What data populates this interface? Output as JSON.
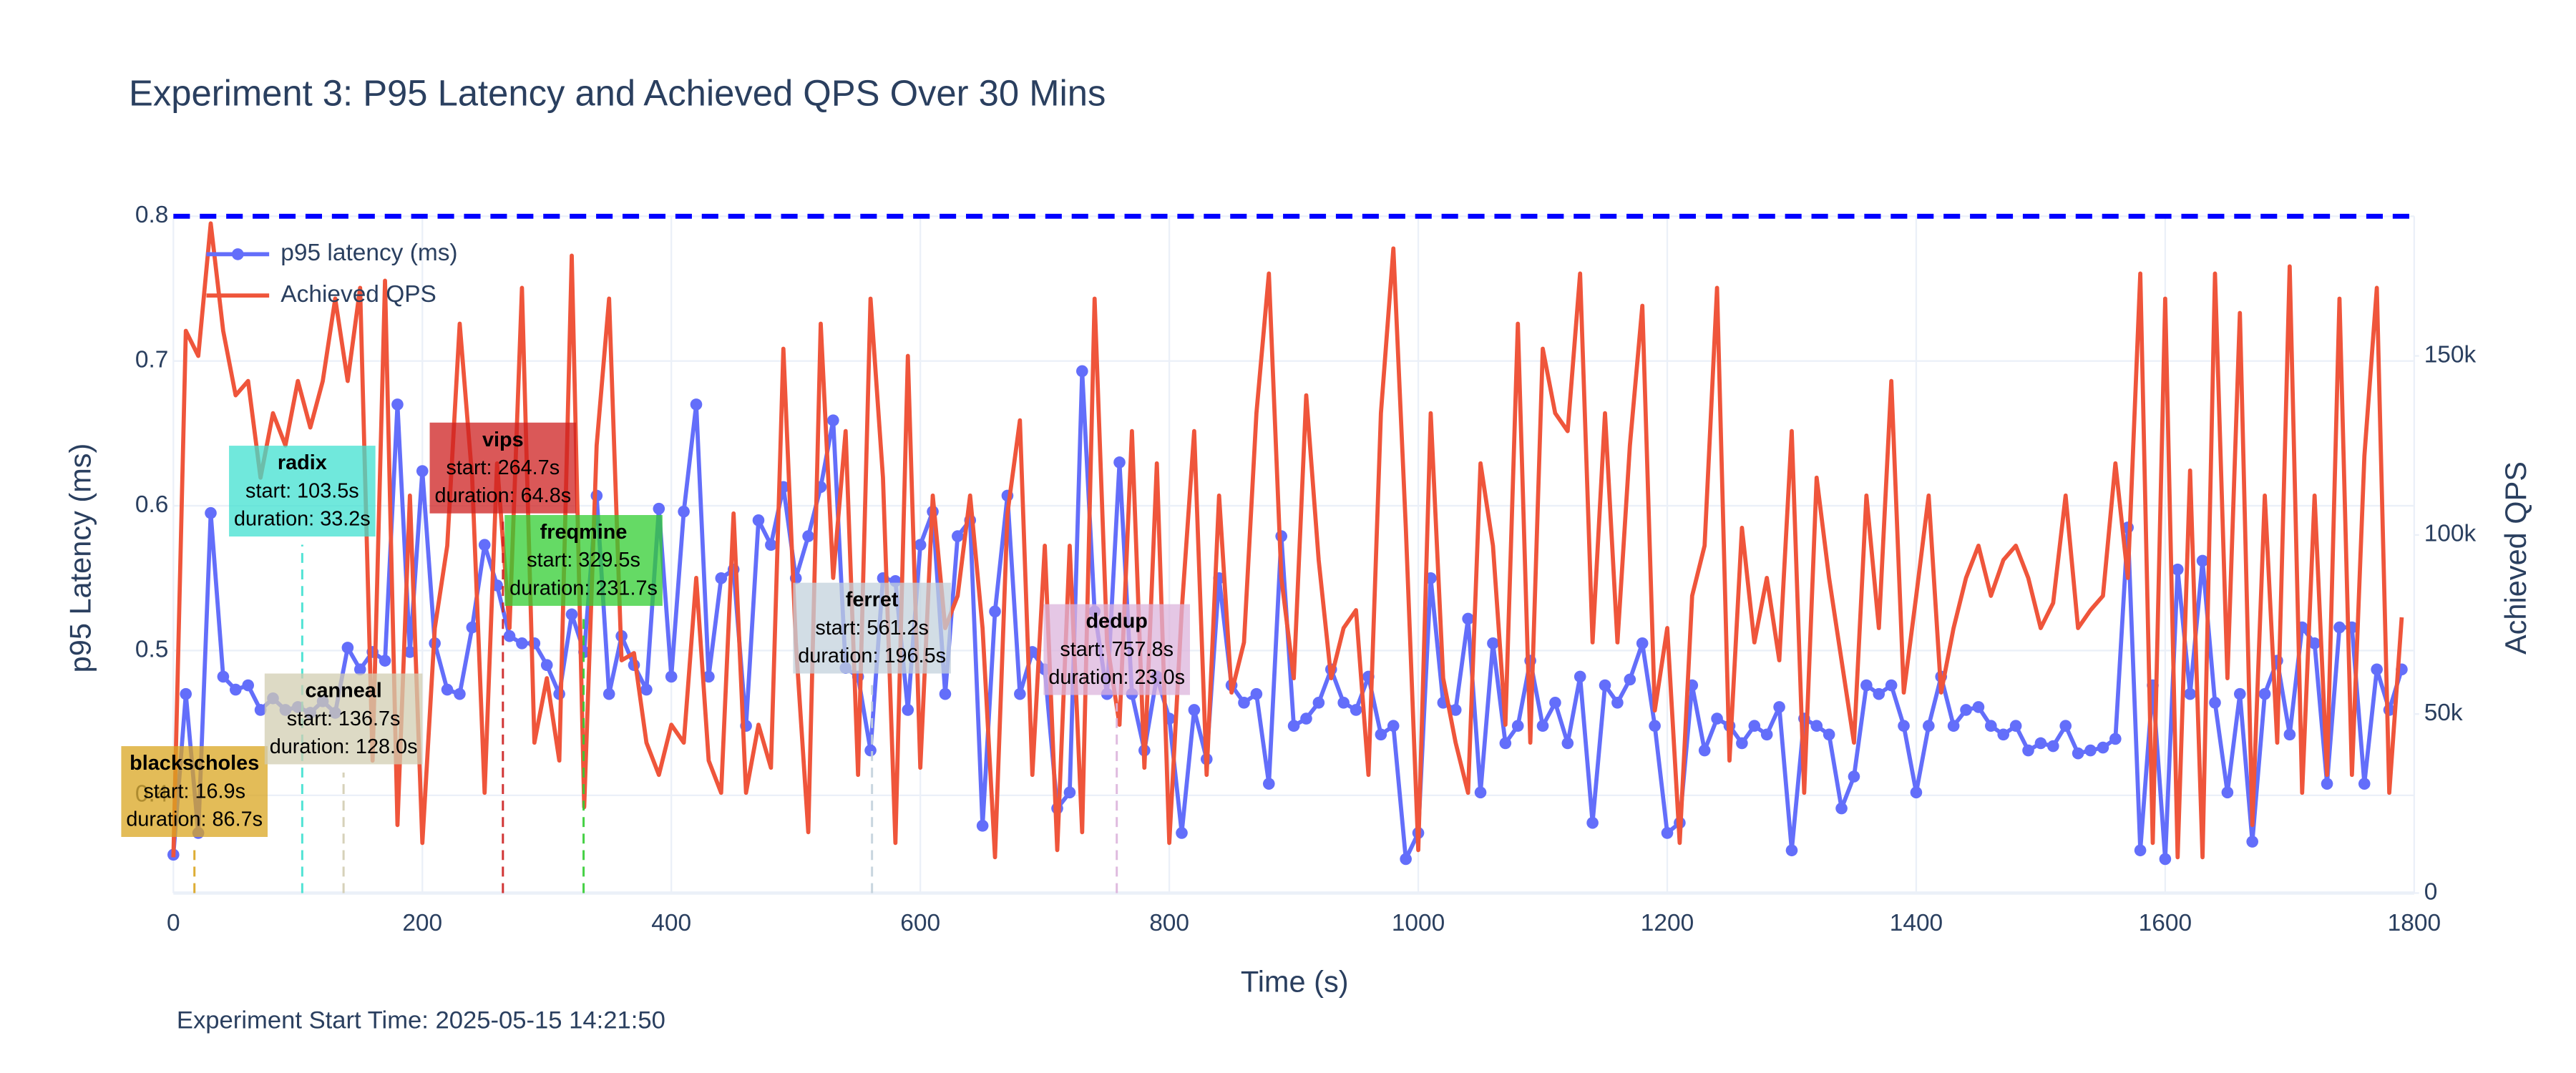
{
  "chart_data": {
    "type": "line",
    "title": "Experiment 3: P95 Latency and Achieved QPS Over 30 Mins",
    "footnote": "Experiment Start Time: 2025-05-15 14:21:50",
    "x_label": "Time (s)",
    "y_label": "p95 Latency (ms)",
    "y2_label": "Achieved QPS",
    "xlim": [
      0,
      1800
    ],
    "xticks": [
      0,
      200,
      400,
      600,
      800,
      1000,
      1200,
      1400,
      1600,
      1800
    ],
    "ylim": [
      0.3325,
      0.8
    ],
    "yticks": [
      0.4,
      0.5,
      0.6,
      0.7,
      0.8
    ],
    "y2lim": [
      0,
      189000
    ],
    "y2ticks": [
      0,
      {
        "value": 50000,
        "label": "50k"
      },
      {
        "value": 100000,
        "label": "100k"
      },
      {
        "value": 150000,
        "label": "150k"
      }
    ],
    "grid": true,
    "legend": "top-left",
    "threshold": 0.8,
    "threshold_color": "#0000ff",
    "x": [
      0,
      10,
      20,
      30,
      40,
      50,
      60,
      70,
      80,
      90,
      100,
      110,
      120,
      130,
      140,
      150,
      160,
      170,
      180,
      190,
      200,
      210,
      220,
      230,
      240,
      250,
      260,
      270,
      280,
      290,
      300,
      310,
      320,
      330,
      340,
      350,
      360,
      370,
      380,
      390,
      400,
      410,
      420,
      430,
      440,
      450,
      460,
      470,
      480,
      490,
      500,
      510,
      520,
      530,
      540,
      550,
      560,
      570,
      580,
      590,
      600,
      610,
      620,
      630,
      640,
      650,
      660,
      670,
      680,
      690,
      700,
      710,
      720,
      730,
      740,
      750,
      760,
      770,
      780,
      790,
      800,
      810,
      820,
      830,
      840,
      850,
      860,
      870,
      880,
      890,
      900,
      910,
      920,
      930,
      940,
      950,
      960,
      970,
      980,
      990,
      1000,
      1010,
      1020,
      1030,
      1040,
      1050,
      1060,
      1070,
      1080,
      1090,
      1100,
      1110,
      1120,
      1130,
      1140,
      1150,
      1160,
      1170,
      1180,
      1190,
      1200,
      1210,
      1220,
      1230,
      1240,
      1250,
      1260,
      1270,
      1280,
      1290,
      1300,
      1310,
      1320,
      1330,
      1340,
      1350,
      1360,
      1370,
      1380,
      1390,
      1400,
      1410,
      1420,
      1430,
      1440,
      1450,
      1460,
      1470,
      1480,
      1490,
      1500,
      1510,
      1520,
      1530,
      1540,
      1550,
      1560,
      1570,
      1580,
      1590,
      1600,
      1610,
      1620,
      1630,
      1640,
      1650,
      1660,
      1670,
      1680,
      1690,
      1700,
      1710,
      1720,
      1730,
      1740,
      1750,
      1760,
      1770,
      1780,
      1790
    ],
    "series": [
      {
        "name": "p95 latency (ms)",
        "color": "#636efa",
        "markers": true,
        "values": [
          0.359,
          0.47,
          0.374,
          0.595,
          0.482,
          0.473,
          0.476,
          0.459,
          0.467,
          0.459,
          0.461,
          0.457,
          0.465,
          0.457,
          0.502,
          0.487,
          0.499,
          0.493,
          0.67,
          0.499,
          0.624,
          0.505,
          0.473,
          0.47,
          0.516,
          0.573,
          0.545,
          0.51,
          0.505,
          0.505,
          0.49,
          0.47,
          0.525,
          0.499,
          0.607,
          0.47,
          0.51,
          0.49,
          0.473,
          0.598,
          0.482,
          0.596,
          0.67,
          0.482,
          0.55,
          0.556,
          0.448,
          0.59,
          0.573,
          0.613,
          0.55,
          0.579,
          0.613,
          0.659,
          0.488,
          0.482,
          0.431,
          0.55,
          0.548,
          0.459,
          0.573,
          0.596,
          0.47,
          0.579,
          0.59,
          0.379,
          0.527,
          0.607,
          0.47,
          0.499,
          0.487,
          0.391,
          0.402,
          0.693,
          0.527,
          0.47,
          0.63,
          0.47,
          0.431,
          0.482,
          0.453,
          0.374,
          0.459,
          0.425,
          0.55,
          0.476,
          0.464,
          0.47,
          0.408,
          0.579,
          0.448,
          0.453,
          0.464,
          0.487,
          0.464,
          0.459,
          0.482,
          0.442,
          0.448,
          0.356,
          0.374,
          0.55,
          0.464,
          0.459,
          0.522,
          0.402,
          0.505,
          0.436,
          0.448,
          0.493,
          0.448,
          0.464,
          0.436,
          0.482,
          0.381,
          0.476,
          0.464,
          0.48,
          0.505,
          0.448,
          0.374,
          0.381,
          0.476,
          0.431,
          0.453,
          0.448,
          0.436,
          0.448,
          0.442,
          0.461,
          0.362,
          0.453,
          0.448,
          0.442,
          0.391,
          0.413,
          0.476,
          0.47,
          0.476,
          0.448,
          0.402,
          0.448,
          0.482,
          0.448,
          0.459,
          0.461,
          0.448,
          0.442,
          0.448,
          0.431,
          0.436,
          0.434,
          0.448,
          0.429,
          0.431,
          0.433,
          0.439,
          0.585,
          0.362,
          0.476,
          0.356,
          0.556,
          0.47,
          0.562,
          0.464,
          0.402,
          0.47,
          0.368,
          0.47,
          0.493,
          0.442,
          0.516,
          0.505,
          0.408,
          0.516,
          0.516,
          0.408,
          0.487,
          0.459,
          0.487
        ]
      },
      {
        "name": "Achieved QPS",
        "color": "#ef553b",
        "axis": "y2",
        "markers": false,
        "values": [
          10000,
          157000,
          150000,
          187000,
          157000,
          139000,
          143000,
          116000,
          134000,
          125000,
          143000,
          130000,
          143000,
          166000,
          143000,
          169000,
          37000,
          171000,
          19000,
          111000,
          14000,
          74000,
          97000,
          159000,
          116000,
          28000,
          120000,
          74000,
          169000,
          42000,
          60000,
          37000,
          178000,
          24000,
          125000,
          166000,
          65000,
          67000,
          42000,
          33000,
          47000,
          42000,
          88000,
          37000,
          28000,
          106000,
          28000,
          47000,
          35000,
          152000,
          70000,
          17000,
          159000,
          88000,
          129000,
          33000,
          166000,
          116000,
          14000,
          150000,
          35000,
          111000,
          74000,
          83000,
          111000,
          74000,
          10000,
          106000,
          132000,
          33000,
          97000,
          12000,
          97000,
          17000,
          166000,
          70000,
          47000,
          129000,
          35000,
          120000,
          14000,
          79000,
          129000,
          33000,
          111000,
          56000,
          70000,
          134000,
          173000,
          88000,
          60000,
          139000,
          93000,
          60000,
          74000,
          79000,
          33000,
          134000,
          180000,
          102000,
          12000,
          134000,
          60000,
          42000,
          28000,
          120000,
          97000,
          47000,
          159000,
          42000,
          152000,
          134000,
          129000,
          173000,
          70000,
          134000,
          70000,
          125000,
          164000,
          51000,
          74000,
          14000,
          83000,
          97000,
          169000,
          37000,
          102000,
          70000,
          88000,
          65000,
          129000,
          28000,
          116000,
          88000,
          65000,
          42000,
          111000,
          74000,
          143000,
          56000,
          83000,
          111000,
          56000,
          74000,
          88000,
          97000,
          83000,
          93000,
          97000,
          88000,
          74000,
          81000,
          111000,
          74000,
          79000,
          83000,
          120000,
          88000,
          173000,
          14000,
          166000,
          10000,
          118000,
          10000,
          173000,
          60000,
          162000,
          19000,
          111000,
          42000,
          175000,
          28000,
          111000,
          33000,
          166000,
          33000,
          122000,
          169000,
          28000,
          77000
        ]
      }
    ],
    "annotations": [
      {
        "name": "blackscholes",
        "start": 16.9,
        "start_label": "start: 16.9s",
        "duration_label": "duration: 86.7s",
        "color": "#daa520"
      },
      {
        "name": "radix",
        "start": 103.5,
        "start_label": "start: 103.5s",
        "duration_label": "duration: 33.2s",
        "color": "#40e0d0"
      },
      {
        "name": "canneal",
        "start": 136.7,
        "start_label": "start: 136.7s",
        "duration_label": "duration: 128.0s",
        "color": "#d2cdb2"
      },
      {
        "name": "vips",
        "start": 264.7,
        "start_label": "start: 264.7s",
        "duration_label": "duration: 64.8s",
        "color": "#cd2020"
      },
      {
        "name": "freqmine",
        "start": 329.5,
        "start_label": "start: 329.5s",
        "duration_label": "duration: 231.7s",
        "color": "#32cd32"
      },
      {
        "name": "ferret",
        "start": 561.2,
        "start_label": "start: 561.2s",
        "duration_label": "duration: 196.5s",
        "color": "#c3d2dc"
      },
      {
        "name": "dedup",
        "start": 757.8,
        "start_label": "start: 757.8s",
        "duration_label": "duration: 23.0s",
        "color": "#dcb4dc"
      }
    ]
  }
}
